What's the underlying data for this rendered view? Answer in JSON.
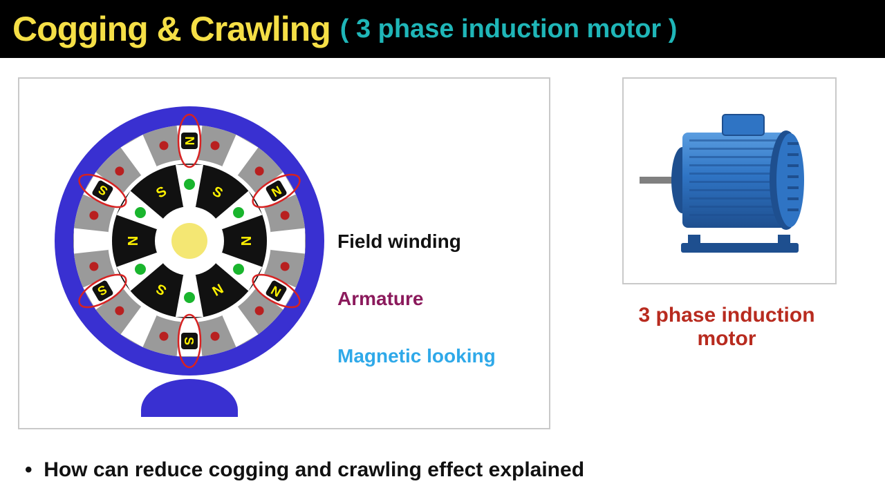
{
  "header": {
    "title_main": "Cogging & Crawling",
    "title_sub": "( 3 phase induction motor )",
    "title_main_color": "#f5df46",
    "title_sub_color": "#1fb6b8",
    "bg": "#000000"
  },
  "legend": {
    "items": [
      {
        "label": "Field winding",
        "color": "#111111"
      },
      {
        "label": "Armature",
        "color": "#8b1a5c"
      },
      {
        "label": "Magnetic looking",
        "color": "#2fa9e9"
      }
    ]
  },
  "motor_caption": {
    "text": "3 phase induction motor",
    "color": "#b82b1f"
  },
  "bottom": {
    "bullet": "•",
    "text": "How can reduce cogging and crawling effect explained",
    "color": "#111111"
  },
  "cross_section": {
    "outer_ring_color": "#3930d1",
    "stator_grey": "#9a9a9a",
    "stator_slot_bg": "#ffffff",
    "rotor_color": "#111111",
    "shaft_color": "#f4e773",
    "pole_label_bg": "#111111",
    "pole_label_color": "#fff200",
    "coil_outline": "#d62222",
    "dot_green": "#19b52d",
    "dot_red": "#b82020",
    "base_color": "#3930d1",
    "outer_poles": [
      "N",
      "N",
      "N",
      "S",
      "S",
      "S"
    ],
    "inner_poles": [
      "S",
      "N",
      "N",
      "S",
      "N",
      "S"
    ],
    "num_stator_slots": 12,
    "num_rotor_poles": 6
  },
  "motor_graphic": {
    "body_color": "#2f74c4",
    "body_light": "#5a9de0",
    "body_dark": "#1e4f8f",
    "base_color": "#1e4f8f",
    "shaft_color": "#808080"
  }
}
